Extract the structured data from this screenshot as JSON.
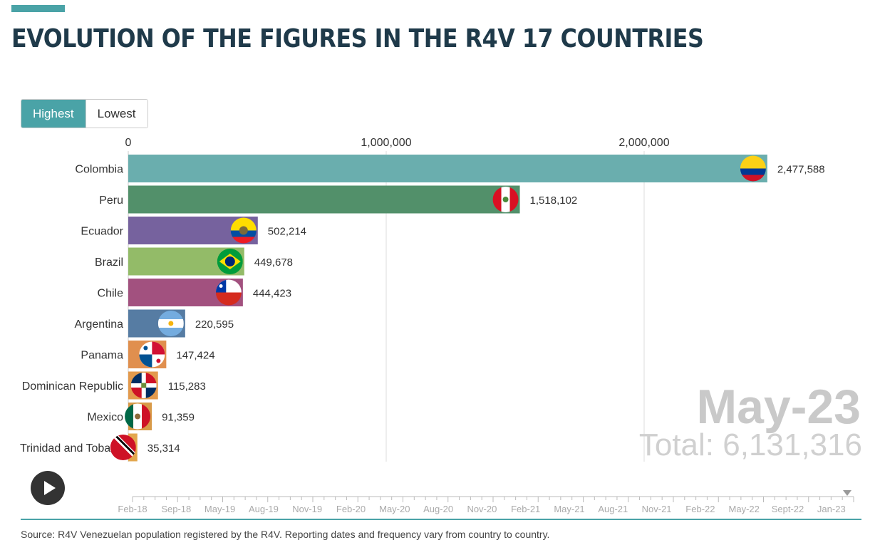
{
  "header": {
    "title": "EVOLUTION OF THE FIGURES IN THE R4V 17 COUNTRIES",
    "accent_color": "#4aa3a7"
  },
  "sort_toggle": {
    "options": [
      "Highest",
      "Lowest"
    ],
    "selected": "Highest"
  },
  "period_display": {
    "period": "May-23",
    "total_text": "Total: 6,131,316"
  },
  "play_button": {
    "icon": "play-icon"
  },
  "timeline": {
    "labels": [
      "Feb-18",
      "Sep-18",
      "May-19",
      "Aug-19",
      "Nov-19",
      "Feb-20",
      "May-20",
      "Aug-20",
      "Nov-20",
      "Feb-21",
      "May-21",
      "Aug-21",
      "Nov-21",
      "Feb-22",
      "May-22",
      "Sept-22",
      "Jan-23"
    ],
    "current": "May-23"
  },
  "footer": {
    "source": "Source: R4V Venezuelan population registered by the R4V. Reporting dates and frequency vary from country to country."
  },
  "chart_data": {
    "type": "bar",
    "orientation": "horizontal",
    "categories": [
      "Colombia",
      "Peru",
      "Ecuador",
      "Brazil",
      "Chile",
      "Argentina",
      "Panama",
      "Dominican Republic",
      "Mexico",
      "Trinidad and Tobago"
    ],
    "values": [
      2477588,
      1518102,
      502214,
      449678,
      444423,
      220595,
      147424,
      115283,
      91359,
      35314
    ],
    "value_labels": [
      "2,477,588",
      "1,518,102",
      "502,214",
      "449,678",
      "444,423",
      "220,595",
      "147,424",
      "115,283",
      "91,359",
      "35,314"
    ],
    "colors": [
      "#6aaeae",
      "#52906a",
      "#76629e",
      "#93bb68",
      "#a2517f",
      "#567ca3",
      "#e08f4e",
      "#e39a4d",
      "#d89a48",
      "#e3a74e"
    ],
    "flags": [
      "colombia-flag-icon",
      "peru-flag-icon",
      "ecuador-flag-icon",
      "brazil-flag-icon",
      "chile-flag-icon",
      "argentina-flag-icon",
      "panama-flag-icon",
      "dominican-republic-flag-icon",
      "mexico-flag-icon",
      "trinidad-and-tobago-flag-icon"
    ],
    "xlim": [
      0,
      2600000
    ],
    "xticks": [
      0,
      1000000,
      2000000
    ],
    "xtick_labels": [
      "0",
      "1,000,000",
      "2,000,000"
    ],
    "grid": true
  }
}
